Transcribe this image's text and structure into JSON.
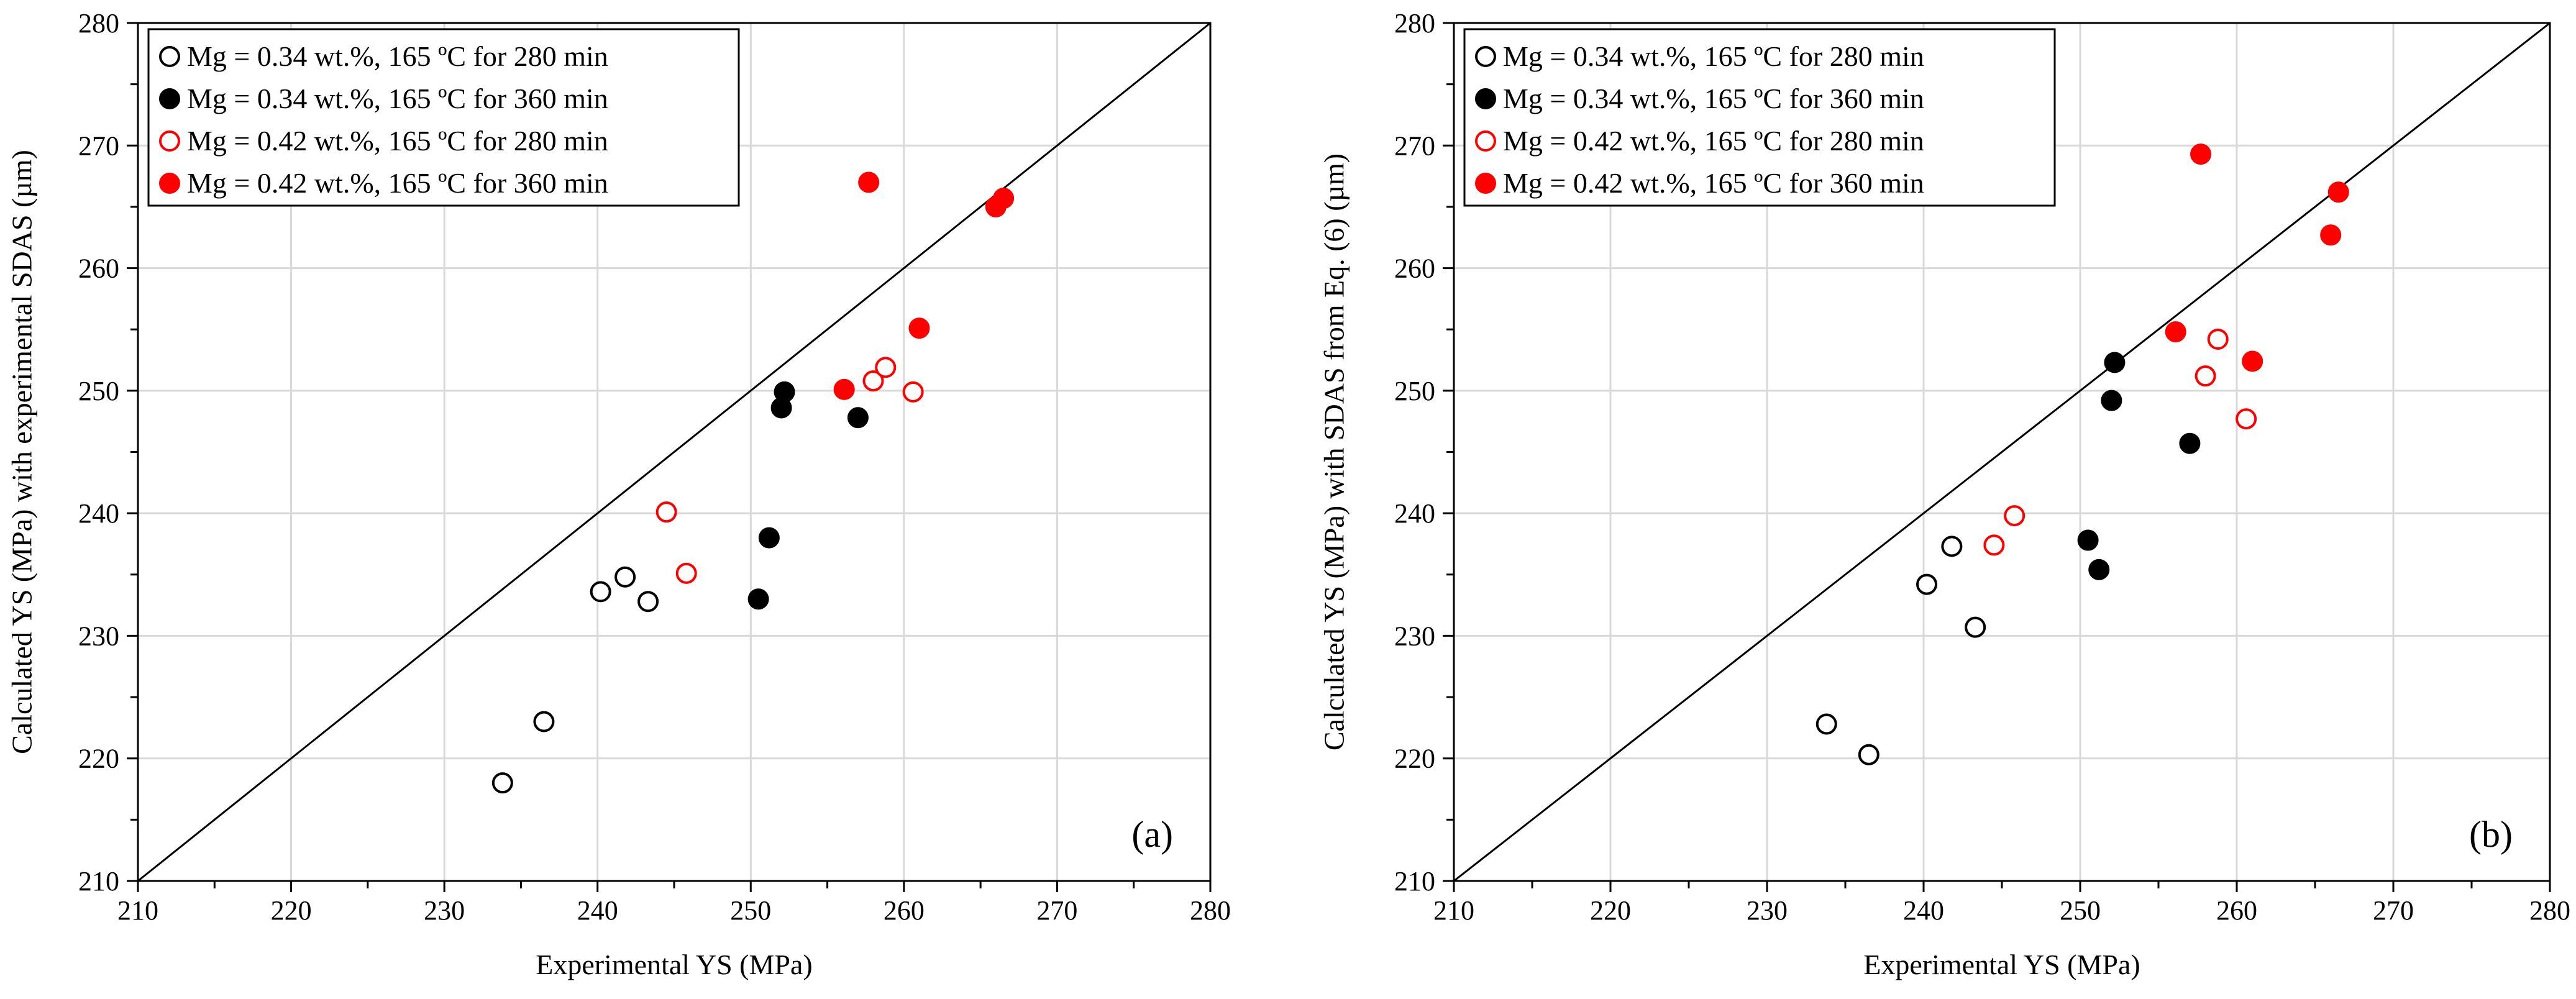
{
  "chart_data": [
    {
      "type": "scatter",
      "panel_label": "(a)",
      "xlabel": "Experimental YS (MPa)",
      "ylabel": "Calculated YS (MPa) with experimental SDAS (µm)",
      "xlim": [
        210,
        280
      ],
      "ylim": [
        210,
        280
      ],
      "x_ticks": [
        "210",
        "220",
        "230",
        "240",
        "250",
        "260",
        "270",
        "280"
      ],
      "y_ticks": [
        "210",
        "220",
        "230",
        "240",
        "250",
        "260",
        "270",
        "280"
      ],
      "grid": true,
      "reference_line": "y = x",
      "legend_position": "top-left",
      "series": [
        {
          "name": "Mg = 0.34 wt.%, 165 ºC for 280 min",
          "color": "#000000",
          "filled": false,
          "points": [
            [
              233.8,
              218.0
            ],
            [
              236.5,
              223.0
            ],
            [
              240.2,
              233.6
            ],
            [
              241.8,
              234.8
            ],
            [
              243.3,
              232.8
            ]
          ]
        },
        {
          "name": "Mg = 0.34 wt.%, 165 ºC for 360 min",
          "color": "#000000",
          "filled": true,
          "points": [
            [
              250.5,
              233.0
            ],
            [
              251.2,
              238.0
            ],
            [
              252.0,
              248.6
            ],
            [
              252.2,
              249.9
            ],
            [
              257.0,
              247.8
            ]
          ]
        },
        {
          "name": "Mg = 0.42 wt.%, 165 ºC for 280 min",
          "color": "#ff0000",
          "filled": false,
          "points": [
            [
              244.5,
              240.1
            ],
            [
              245.8,
              235.1
            ],
            [
              258.0,
              250.8
            ],
            [
              258.8,
              251.9
            ],
            [
              260.6,
              249.9
            ]
          ]
        },
        {
          "name": "Mg = 0.42 wt.%, 165 ºC for 360 min",
          "color": "#ff0000",
          "filled": true,
          "points": [
            [
              256.1,
              250.1
            ],
            [
              257.7,
              267.0
            ],
            [
              261.0,
              255.1
            ],
            [
              266.0,
              265.0
            ],
            [
              266.5,
              265.7
            ]
          ]
        }
      ]
    },
    {
      "type": "scatter",
      "panel_label": "(b)",
      "xlabel": "Experimental YS (MPa)",
      "ylabel": "Calculated YS (MPa) with SDAS from Eq. (6) (µm)",
      "xlim": [
        210,
        280
      ],
      "ylim": [
        210,
        280
      ],
      "x_ticks": [
        "210",
        "220",
        "230",
        "240",
        "250",
        "260",
        "270",
        "280"
      ],
      "y_ticks": [
        "210",
        "220",
        "230",
        "240",
        "250",
        "260",
        "270",
        "280"
      ],
      "grid": true,
      "reference_line": "y = x",
      "legend_position": "top-left",
      "series": [
        {
          "name": "Mg = 0.34 wt.%, 165 ºC for 280 min",
          "color": "#000000",
          "filled": false,
          "points": [
            [
              233.8,
              222.8
            ],
            [
              236.5,
              220.3
            ],
            [
              240.2,
              234.2
            ],
            [
              241.8,
              237.3
            ],
            [
              243.3,
              230.7
            ]
          ]
        },
        {
          "name": "Mg = 0.34 wt.%, 165 ºC for 360 min",
          "color": "#000000",
          "filled": true,
          "points": [
            [
              250.5,
              237.8
            ],
            [
              251.2,
              235.4
            ],
            [
              252.0,
              249.2
            ],
            [
              252.2,
              252.3
            ],
            [
              257.0,
              245.7
            ]
          ]
        },
        {
          "name": "Mg = 0.42 wt.%, 165 ºC for 280 min",
          "color": "#ff0000",
          "filled": false,
          "points": [
            [
              244.5,
              237.4
            ],
            [
              245.8,
              239.8
            ],
            [
              258.0,
              251.2
            ],
            [
              258.8,
              254.2
            ],
            [
              260.6,
              247.7
            ]
          ]
        },
        {
          "name": "Mg = 0.42 wt.%, 165 ºC for 360 min",
          "color": "#ff0000",
          "filled": true,
          "points": [
            [
              256.1,
              254.8
            ],
            [
              257.7,
              269.3
            ],
            [
              261.0,
              252.4
            ],
            [
              266.0,
              262.7
            ],
            [
              266.5,
              266.2
            ]
          ]
        }
      ]
    }
  ]
}
